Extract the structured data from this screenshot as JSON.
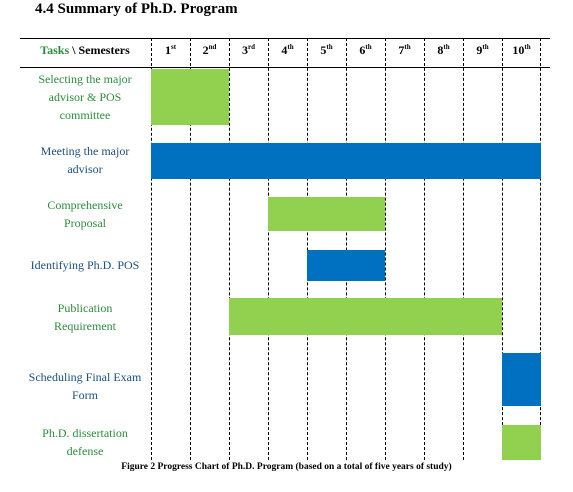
{
  "heading": "4.4 Summary of Ph.D. Program",
  "header": {
    "tasks": "Tasks",
    "separator": "\\",
    "semesters": "Semesters"
  },
  "semesters": [
    {
      "num": "1",
      "sup": "st"
    },
    {
      "num": "2",
      "sup": "nd"
    },
    {
      "num": "3",
      "sup": "rd"
    },
    {
      "num": "4",
      "sup": "th"
    },
    {
      "num": "5",
      "sup": "th"
    },
    {
      "num": "6",
      "sup": "th"
    },
    {
      "num": "7",
      "sup": "th"
    },
    {
      "num": "8",
      "sup": "th"
    },
    {
      "num": "9",
      "sup": "th"
    },
    {
      "num": "10",
      "sup": "th"
    }
  ],
  "colors": {
    "green": "#92d050",
    "blue": "#0070c0",
    "green_text": "#2e8b3e",
    "blue_text": "#1f4e79"
  },
  "tasks": [
    {
      "label": "Selecting the major advisor & POS committee",
      "color": "green",
      "start_semester": 1,
      "end_semester": 2
    },
    {
      "label": "Meeting the major advisor",
      "color": "blue",
      "start_semester": 1,
      "end_semester": 10
    },
    {
      "label": "Comprehensive Proposal",
      "color": "green",
      "start_semester": 4,
      "end_semester": 6
    },
    {
      "label": "Identifying Ph.D. POS",
      "color": "blue",
      "start_semester": 5,
      "end_semester": 6
    },
    {
      "label": "Publication Requirement",
      "color": "green",
      "start_semester": 3,
      "end_semester": 9
    },
    {
      "label": "Scheduling Final Exam Form",
      "color": "blue",
      "start_semester": 10,
      "end_semester": 10
    },
    {
      "label": "Ph.D. dissertation defense",
      "color": "green",
      "start_semester": 10,
      "end_semester": 10
    }
  ],
  "caption": "Figure 2  Progress Chart of Ph.D. Program (based on a total of five years of study)"
}
